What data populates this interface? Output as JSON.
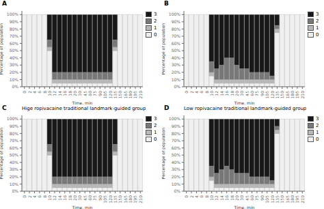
{
  "chart_data": [
    {
      "type": "bar",
      "stacked": true,
      "annotations": [
        "A"
      ],
      "xlabel": "Time, min",
      "ylabel": "Percentage of population",
      "categories": [
        "0",
        "2",
        "4",
        "6",
        "8",
        "10",
        "12",
        "14",
        "16",
        "18",
        "20",
        "30",
        "45",
        "60",
        "75",
        "90",
        "105",
        "120",
        "135",
        "150",
        "165",
        "180",
        "195",
        "210"
      ],
      "series": [
        {
          "name": "0",
          "color": "#f0f0f0",
          "values": [
            100,
            100,
            100,
            100,
            100,
            50,
            5,
            5,
            5,
            5,
            5,
            5,
            5,
            5,
            5,
            5,
            5,
            5,
            50,
            100,
            100,
            100,
            100,
            100
          ]
        },
        {
          "name": "1",
          "color": "#b8b8b8",
          "values": [
            0,
            0,
            0,
            0,
            0,
            5,
            5,
            5,
            5,
            5,
            5,
            5,
            5,
            5,
            5,
            5,
            5,
            5,
            5,
            0,
            0,
            0,
            0,
            0
          ]
        },
        {
          "name": "2",
          "color": "#787878",
          "values": [
            0,
            0,
            0,
            0,
            0,
            10,
            10,
            10,
            10,
            10,
            10,
            10,
            10,
            10,
            10,
            10,
            10,
            10,
            10,
            0,
            0,
            0,
            0,
            0
          ]
        },
        {
          "name": "3",
          "color": "#181818",
          "values": [
            0,
            0,
            0,
            0,
            0,
            35,
            80,
            80,
            80,
            80,
            80,
            80,
            80,
            80,
            80,
            80,
            80,
            80,
            35,
            0,
            0,
            0,
            0,
            0
          ]
        }
      ],
      "ylim": [
        0,
        105
      ],
      "yticks": [
        {
          "value": 0,
          "label": "0%"
        },
        {
          "value": 10,
          "label": "10%"
        },
        {
          "value": 20,
          "label": "20%"
        },
        {
          "value": 30,
          "label": "30%"
        },
        {
          "value": 40,
          "label": "40%"
        },
        {
          "value": 50,
          "label": "50%"
        },
        {
          "value": 60,
          "label": "60%"
        },
        {
          "value": 70,
          "label": "70%"
        },
        {
          "value": 80,
          "label": "80%"
        },
        {
          "value": 90,
          "label": "90%"
        },
        {
          "value": 100,
          "label": "100%"
        }
      ],
      "grid": false,
      "legend": "upper right"
    },
    {
      "type": "bar",
      "stacked": true,
      "annotations": [
        "B"
      ],
      "xlabel": "Time, min",
      "ylabel": "Percentage of population",
      "categories": [
        "0",
        "2",
        "4",
        "6",
        "8",
        "10",
        "12",
        "14",
        "16",
        "18",
        "20",
        "30",
        "45",
        "60",
        "75",
        "90",
        "105",
        "120",
        "135",
        "150",
        "165",
        "180",
        "195",
        "210"
      ],
      "series": [
        {
          "name": "0",
          "color": "#f0f0f0",
          "values": [
            100,
            100,
            100,
            100,
            100,
            15,
            5,
            5,
            5,
            5,
            5,
            5,
            5,
            5,
            5,
            5,
            5,
            5,
            75,
            100,
            100,
            100,
            100,
            100
          ]
        },
        {
          "name": "1",
          "color": "#b8b8b8",
          "values": [
            0,
            0,
            0,
            0,
            0,
            5,
            5,
            5,
            5,
            5,
            5,
            5,
            5,
            5,
            5,
            5,
            5,
            5,
            5,
            0,
            0,
            0,
            0,
            0
          ]
        },
        {
          "name": "2",
          "color": "#787878",
          "values": [
            0,
            0,
            0,
            0,
            0,
            15,
            15,
            20,
            30,
            30,
            20,
            15,
            15,
            10,
            10,
            10,
            10,
            5,
            5,
            0,
            0,
            0,
            0,
            0
          ]
        },
        {
          "name": "3",
          "color": "#181818",
          "values": [
            0,
            0,
            0,
            0,
            0,
            65,
            75,
            70,
            60,
            60,
            70,
            75,
            75,
            80,
            80,
            80,
            80,
            85,
            15,
            0,
            0,
            0,
            0,
            0
          ]
        }
      ],
      "ylim": [
        0,
        105
      ],
      "yticks": [
        {
          "value": 0,
          "label": "0%"
        },
        {
          "value": 10,
          "label": "10%"
        },
        {
          "value": 20,
          "label": "20%"
        },
        {
          "value": 30,
          "label": "30%"
        },
        {
          "value": 40,
          "label": "40%"
        },
        {
          "value": 50,
          "label": "50%"
        },
        {
          "value": 60,
          "label": "60%"
        },
        {
          "value": 70,
          "label": "70%"
        },
        {
          "value": 80,
          "label": "80%"
        },
        {
          "value": 90,
          "label": "90%"
        },
        {
          "value": 100,
          "label": "100%"
        }
      ],
      "grid": false,
      "legend": "upper right"
    },
    {
      "type": "bar",
      "stacked": true,
      "annotations": [
        "C"
      ],
      "title": "Hige ropivacaine traditional landmark-guided group",
      "xlabel": "Time, min",
      "ylabel": "Percentage of population",
      "categories": [
        "0",
        "2",
        "4",
        "6",
        "8",
        "10",
        "12",
        "14",
        "16",
        "18",
        "20",
        "30",
        "45",
        "60",
        "75",
        "90",
        "105",
        "120",
        "135",
        "150",
        "165",
        "180",
        "195",
        "210"
      ],
      "series": [
        {
          "name": "0",
          "color": "#f0f0f0",
          "values": [
            100,
            100,
            100,
            100,
            100,
            50,
            5,
            5,
            5,
            5,
            5,
            5,
            5,
            5,
            5,
            5,
            5,
            5,
            50,
            100,
            100,
            100,
            100,
            100
          ]
        },
        {
          "name": "1",
          "color": "#b8b8b8",
          "values": [
            0,
            0,
            0,
            0,
            0,
            5,
            5,
            5,
            5,
            5,
            5,
            5,
            5,
            5,
            5,
            5,
            5,
            5,
            5,
            0,
            0,
            0,
            0,
            0
          ]
        },
        {
          "name": "2",
          "color": "#787878",
          "values": [
            0,
            0,
            0,
            0,
            0,
            10,
            10,
            10,
            10,
            10,
            10,
            10,
            10,
            10,
            10,
            10,
            10,
            10,
            10,
            0,
            0,
            0,
            0,
            0
          ]
        },
        {
          "name": "3",
          "color": "#181818",
          "values": [
            0,
            0,
            0,
            0,
            0,
            35,
            80,
            80,
            80,
            80,
            80,
            80,
            80,
            80,
            80,
            80,
            80,
            80,
            35,
            0,
            0,
            0,
            0,
            0
          ]
        }
      ],
      "ylim": [
        0,
        105
      ],
      "yticks": [
        {
          "value": 0,
          "label": "0%"
        },
        {
          "value": 10,
          "label": "10%"
        },
        {
          "value": 20,
          "label": "20%"
        },
        {
          "value": 30,
          "label": "30%"
        },
        {
          "value": 40,
          "label": "40%"
        },
        {
          "value": 50,
          "label": "50%"
        },
        {
          "value": 60,
          "label": "60%"
        },
        {
          "value": 70,
          "label": "70%"
        },
        {
          "value": 80,
          "label": "80%"
        },
        {
          "value": 90,
          "label": "90%"
        },
        {
          "value": 100,
          "label": "100%"
        }
      ],
      "grid": false,
      "legend": "upper right"
    },
    {
      "type": "bar",
      "stacked": true,
      "annotations": [
        "D"
      ],
      "title": "Low ropivacaine traditional landmark-guided group",
      "xlabel": "Time, min",
      "ylabel": "Percentage of population",
      "categories": [
        "0",
        "2",
        "4",
        "6",
        "8",
        "10",
        "12",
        "14",
        "16",
        "18",
        "20",
        "30",
        "45",
        "60",
        "75",
        "90",
        "105",
        "120",
        "135",
        "150",
        "165",
        "180",
        "195",
        "210"
      ],
      "series": [
        {
          "name": "0",
          "color": "#f0f0f0",
          "values": [
            100,
            100,
            100,
            100,
            100,
            15,
            5,
            5,
            5,
            5,
            5,
            5,
            5,
            5,
            5,
            5,
            5,
            5,
            80,
            100,
            100,
            100,
            100,
            100
          ]
        },
        {
          "name": "1",
          "color": "#b8b8b8",
          "values": [
            0,
            0,
            0,
            0,
            0,
            5,
            5,
            5,
            5,
            5,
            5,
            5,
            5,
            5,
            5,
            5,
            5,
            5,
            5,
            0,
            0,
            0,
            0,
            0
          ]
        },
        {
          "name": "2",
          "color": "#787878",
          "values": [
            0,
            0,
            0,
            0,
            0,
            15,
            15,
            20,
            25,
            20,
            15,
            15,
            15,
            10,
            10,
            10,
            10,
            5,
            5,
            0,
            0,
            0,
            0,
            0
          ]
        },
        {
          "name": "3",
          "color": "#181818",
          "values": [
            0,
            0,
            0,
            0,
            0,
            65,
            75,
            70,
            65,
            70,
            75,
            75,
            75,
            80,
            80,
            80,
            80,
            85,
            10,
            0,
            0,
            0,
            0,
            0
          ]
        }
      ],
      "ylim": [
        0,
        105
      ],
      "yticks": [
        {
          "value": 0,
          "label": "0%"
        },
        {
          "value": 10,
          "label": "10%"
        },
        {
          "value": 20,
          "label": "20%"
        },
        {
          "value": 30,
          "label": "30%"
        },
        {
          "value": 40,
          "label": "40%"
        },
        {
          "value": 50,
          "label": "50%"
        },
        {
          "value": 60,
          "label": "60%"
        },
        {
          "value": 70,
          "label": "70%"
        },
        {
          "value": 80,
          "label": "80%"
        },
        {
          "value": 90,
          "label": "90%"
        },
        {
          "value": 100,
          "label": "100%"
        }
      ],
      "grid": false,
      "legend": "upper right"
    }
  ]
}
